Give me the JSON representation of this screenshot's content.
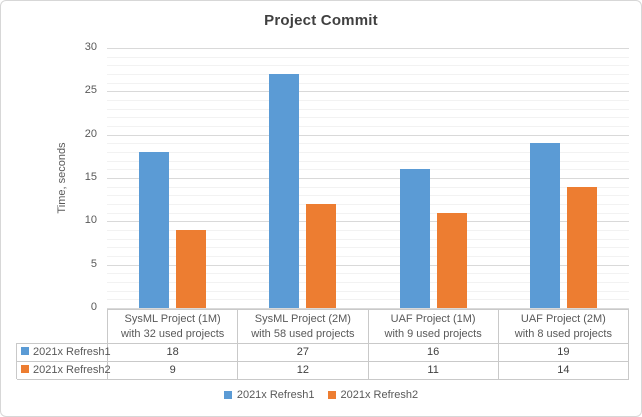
{
  "chart_data": {
    "type": "bar",
    "title": "Project Commit",
    "xlabel": "",
    "ylabel": "Time, seconds",
    "ylim": [
      0,
      30
    ],
    "y_major_unit": 5,
    "y_minor_unit": 1,
    "y_tick_labels": [
      "0",
      "5",
      "10",
      "15",
      "20",
      "25",
      "30"
    ],
    "grid": {
      "major": true,
      "minor": true,
      "major_color": "#d9d9d9",
      "minor_color": "#f2f2f2"
    },
    "categories": [
      {
        "line1": "SysML Project (1M)",
        "line2": "with 32 used projects"
      },
      {
        "line1": "SysML Project (2M)",
        "line2": "with 58 used projects"
      },
      {
        "line1": "UAF Project (1M)",
        "line2": "with 9 used projects"
      },
      {
        "line1": "UAF Project (2M)",
        "line2": "with 8 used projects"
      }
    ],
    "series": [
      {
        "name": "2021x Refresh1",
        "color": "#5b9bd5",
        "values": [
          18,
          27,
          16,
          19
        ]
      },
      {
        "name": "2021x Refresh2",
        "color": "#ed7d31",
        "values": [
          9,
          12,
          11,
          14
        ]
      }
    ],
    "legend": {
      "position": "bottom",
      "entries": [
        "2021x Refresh1",
        "2021x Refresh2"
      ]
    },
    "data_table_shown": true
  }
}
